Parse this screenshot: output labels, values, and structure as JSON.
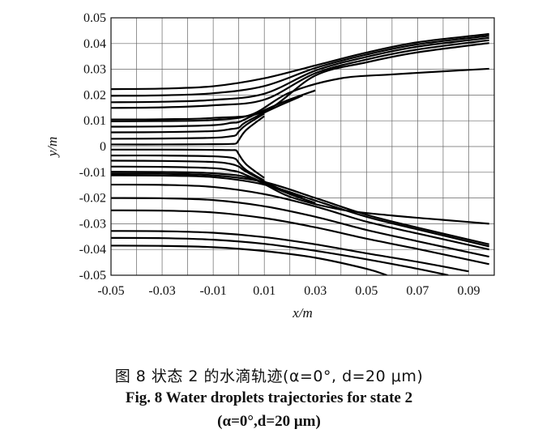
{
  "chart_data": {
    "type": "line",
    "xlabel": "x/m",
    "ylabel": "y/m",
    "xlim": [
      -0.05,
      0.1
    ],
    "ylim": [
      -0.05,
      0.05
    ],
    "x_ticks": [
      "-0.05",
      "-0.03",
      "-0.01",
      "0.01",
      "0.03",
      "0.05",
      "0.07",
      "0.09"
    ],
    "x_tick_values": [
      -0.05,
      -0.03,
      -0.01,
      0.01,
      0.03,
      0.05,
      0.07,
      0.09
    ],
    "y_ticks": [
      "0.05",
      "0.04",
      "0.03",
      "0.02",
      "0.01",
      "0",
      "-0.01",
      "-0.02",
      "-0.03",
      "-0.04",
      "-0.05"
    ],
    "y_tick_values": [
      0.05,
      0.04,
      0.03,
      0.02,
      0.01,
      0,
      -0.01,
      -0.02,
      -0.03,
      -0.04,
      -0.05
    ],
    "grid": true,
    "grid_x": [
      -0.05,
      -0.04,
      -0.03,
      -0.02,
      -0.01,
      0,
      0.01,
      0.02,
      0.03,
      0.04,
      0.05,
      0.06,
      0.07,
      0.08,
      0.09
    ],
    "grid_y": [
      -0.05,
      -0.04,
      -0.03,
      -0.02,
      -0.01,
      0,
      0.01,
      0.02,
      0.03,
      0.04,
      0.05
    ],
    "series": [
      {
        "x": [
          -0.05,
          -0.03,
          -0.01,
          0.01,
          0.03,
          0.05,
          0.07,
          0.098
        ],
        "y": [
          0.0223,
          0.0225,
          0.0234,
          0.0265,
          0.0315,
          0.0365,
          0.0405,
          0.0437
        ]
      },
      {
        "x": [
          -0.05,
          -0.03,
          -0.01,
          0.01,
          0.03,
          0.05,
          0.07,
          0.098
        ],
        "y": [
          0.0197,
          0.0199,
          0.0207,
          0.0235,
          0.0305,
          0.0357,
          0.0397,
          0.043
        ]
      },
      {
        "x": [
          -0.05,
          -0.03,
          -0.01,
          0.01,
          0.03,
          0.05,
          0.07,
          0.098
        ],
        "y": [
          0.0172,
          0.0174,
          0.0181,
          0.0205,
          0.0295,
          0.0348,
          0.0388,
          0.0422
        ]
      },
      {
        "x": [
          -0.05,
          -0.03,
          -0.01,
          0.01,
          0.03,
          0.05,
          0.07,
          0.098
        ],
        "y": [
          0.015,
          0.0152,
          0.016,
          0.0182,
          0.0285,
          0.0338,
          0.0377,
          0.0413
        ]
      },
      {
        "x": [
          -0.05,
          -0.03,
          -0.01,
          0.01,
          0.03,
          0.05,
          0.07,
          0.098
        ],
        "y": [
          0.0105,
          0.0106,
          0.0111,
          0.0136,
          0.0276,
          0.0327,
          0.0366,
          0.0402
        ]
      },
      {
        "x": [
          -0.05,
          -0.03,
          -0.01,
          0.005,
          0.02,
          0.04,
          0.06,
          0.08,
          0.098
        ],
        "y": [
          0.0098,
          0.0099,
          0.0103,
          0.0124,
          0.021,
          0.0265,
          0.028,
          0.0292,
          0.0302
        ]
      },
      {
        "x": [
          -0.05,
          -0.03,
          -0.01,
          -0.003,
          0.0,
          0.005,
          0.012,
          0.02,
          0.03
        ],
        "y": [
          0.0077,
          0.0078,
          0.0083,
          0.0092,
          0.0095,
          0.0118,
          0.015,
          0.0183,
          0.0218
        ]
      },
      {
        "x": [
          -0.05,
          -0.03,
          -0.01,
          -0.003,
          0.0,
          0.002,
          0.008,
          0.015,
          0.025
        ],
        "y": [
          0.0055,
          0.0056,
          0.006,
          0.0068,
          0.0073,
          0.009,
          0.0122,
          0.0155,
          0.0198
        ]
      },
      {
        "x": [
          -0.05,
          -0.03,
          -0.01,
          -0.003,
          -0.001,
          0.0,
          0.003,
          0.01
        ],
        "y": [
          0.003,
          0.0031,
          0.0034,
          0.004,
          0.0045,
          0.0058,
          0.0085,
          0.0128
        ]
      },
      {
        "x": [
          -0.05,
          -0.03,
          -0.01,
          -0.003,
          -0.001,
          0.0,
          0.003,
          0.01
        ],
        "y": [
          0.0008,
          0.0008,
          0.0009,
          0.001,
          0.0012,
          0.0025,
          0.0065,
          0.0118
        ]
      },
      {
        "x": [
          -0.05,
          -0.03,
          -0.01,
          -0.003,
          -0.001,
          0.0,
          0.003,
          0.01
        ],
        "y": [
          -0.0012,
          -0.0012,
          -0.0013,
          -0.0014,
          -0.0015,
          -0.003,
          -0.007,
          -0.0122
        ]
      },
      {
        "x": [
          -0.05,
          -0.03,
          -0.01,
          -0.003,
          -0.001,
          0.0,
          0.003,
          0.01
        ],
        "y": [
          -0.0035,
          -0.0035,
          -0.0038,
          -0.0043,
          -0.005,
          -0.0063,
          -0.0092,
          -0.0132
        ]
      },
      {
        "x": [
          -0.05,
          -0.03,
          -0.01,
          -0.003,
          0.0,
          0.002,
          0.008,
          0.015,
          0.025
        ],
        "y": [
          -0.0055,
          -0.0056,
          -0.006,
          -0.0068,
          -0.0078,
          -0.0092,
          -0.0125,
          -0.016,
          -0.0198
        ]
      },
      {
        "x": [
          -0.05,
          -0.03,
          -0.01,
          -0.003,
          0.0,
          0.005,
          0.012,
          0.02,
          0.03
        ],
        "y": [
          -0.0078,
          -0.0079,
          -0.0084,
          -0.0093,
          -0.0099,
          -0.012,
          -0.0152,
          -0.0185,
          -0.022
        ]
      },
      {
        "x": [
          -0.05,
          -0.03,
          -0.01,
          0.005,
          0.02,
          0.04,
          0.06,
          0.08,
          0.098
        ],
        "y": [
          -0.0098,
          -0.0099,
          -0.0104,
          -0.0124,
          -0.0195,
          -0.0245,
          -0.0268,
          -0.0285,
          -0.03
        ]
      },
      {
        "x": [
          -0.05,
          -0.03,
          -0.01,
          0.01,
          0.03,
          0.05,
          0.07,
          0.098
        ],
        "y": [
          -0.0105,
          -0.0106,
          -0.0112,
          -0.0138,
          -0.02,
          -0.0265,
          -0.0315,
          -0.038
        ]
      },
      {
        "x": [
          -0.05,
          -0.03,
          -0.01,
          0.01,
          0.03,
          0.05,
          0.07,
          0.098
        ],
        "y": [
          -0.0112,
          -0.0113,
          -0.0119,
          -0.0148,
          -0.021,
          -0.0273,
          -0.0322,
          -0.0388
        ]
      },
      {
        "x": [
          -0.05,
          -0.03,
          -0.01,
          0.01,
          0.03,
          0.05,
          0.07,
          0.098
        ],
        "y": [
          -0.0148,
          -0.0149,
          -0.0157,
          -0.0185,
          -0.0233,
          -0.0292,
          -0.0338,
          -0.04
        ]
      },
      {
        "x": [
          -0.05,
          -0.03,
          -0.01,
          0.01,
          0.03,
          0.05,
          0.07,
          0.098
        ],
        "y": [
          -0.02,
          -0.0201,
          -0.0208,
          -0.0232,
          -0.0273,
          -0.0324,
          -0.0368,
          -0.0428
        ]
      },
      {
        "x": [
          -0.05,
          -0.03,
          -0.01,
          0.01,
          0.03,
          0.05,
          0.07,
          0.098
        ],
        "y": [
          -0.0248,
          -0.0249,
          -0.0256,
          -0.0278,
          -0.0314,
          -0.0358,
          -0.0398,
          -0.0457
        ]
      },
      {
        "x": [
          -0.05,
          -0.03,
          -0.01,
          0.01,
          0.03,
          0.05,
          0.07,
          0.09
        ],
        "y": [
          -0.0328,
          -0.0329,
          -0.0335,
          -0.0352,
          -0.038,
          -0.0415,
          -0.0448,
          -0.0485
        ]
      },
      {
        "x": [
          -0.05,
          -0.03,
          -0.01,
          0.01,
          0.03,
          0.05,
          0.07,
          0.082
        ],
        "y": [
          -0.0355,
          -0.0356,
          -0.0362,
          -0.0378,
          -0.0405,
          -0.0438,
          -0.0475,
          -0.05
        ]
      },
      {
        "x": [
          -0.05,
          -0.03,
          -0.01,
          0.01,
          0.03,
          0.05,
          0.058
        ],
        "y": [
          -0.0385,
          -0.0386,
          -0.0391,
          -0.0406,
          -0.0432,
          -0.0475,
          -0.05
        ]
      }
    ]
  },
  "caption": {
    "cn": "图 8   状态 2 的水滴轨迹(α=0°, d=20 μm)",
    "en_line1": "Fig. 8   Water droplets trajectories for state 2",
    "en_line2": "(α=0°,d=20 μm)"
  }
}
